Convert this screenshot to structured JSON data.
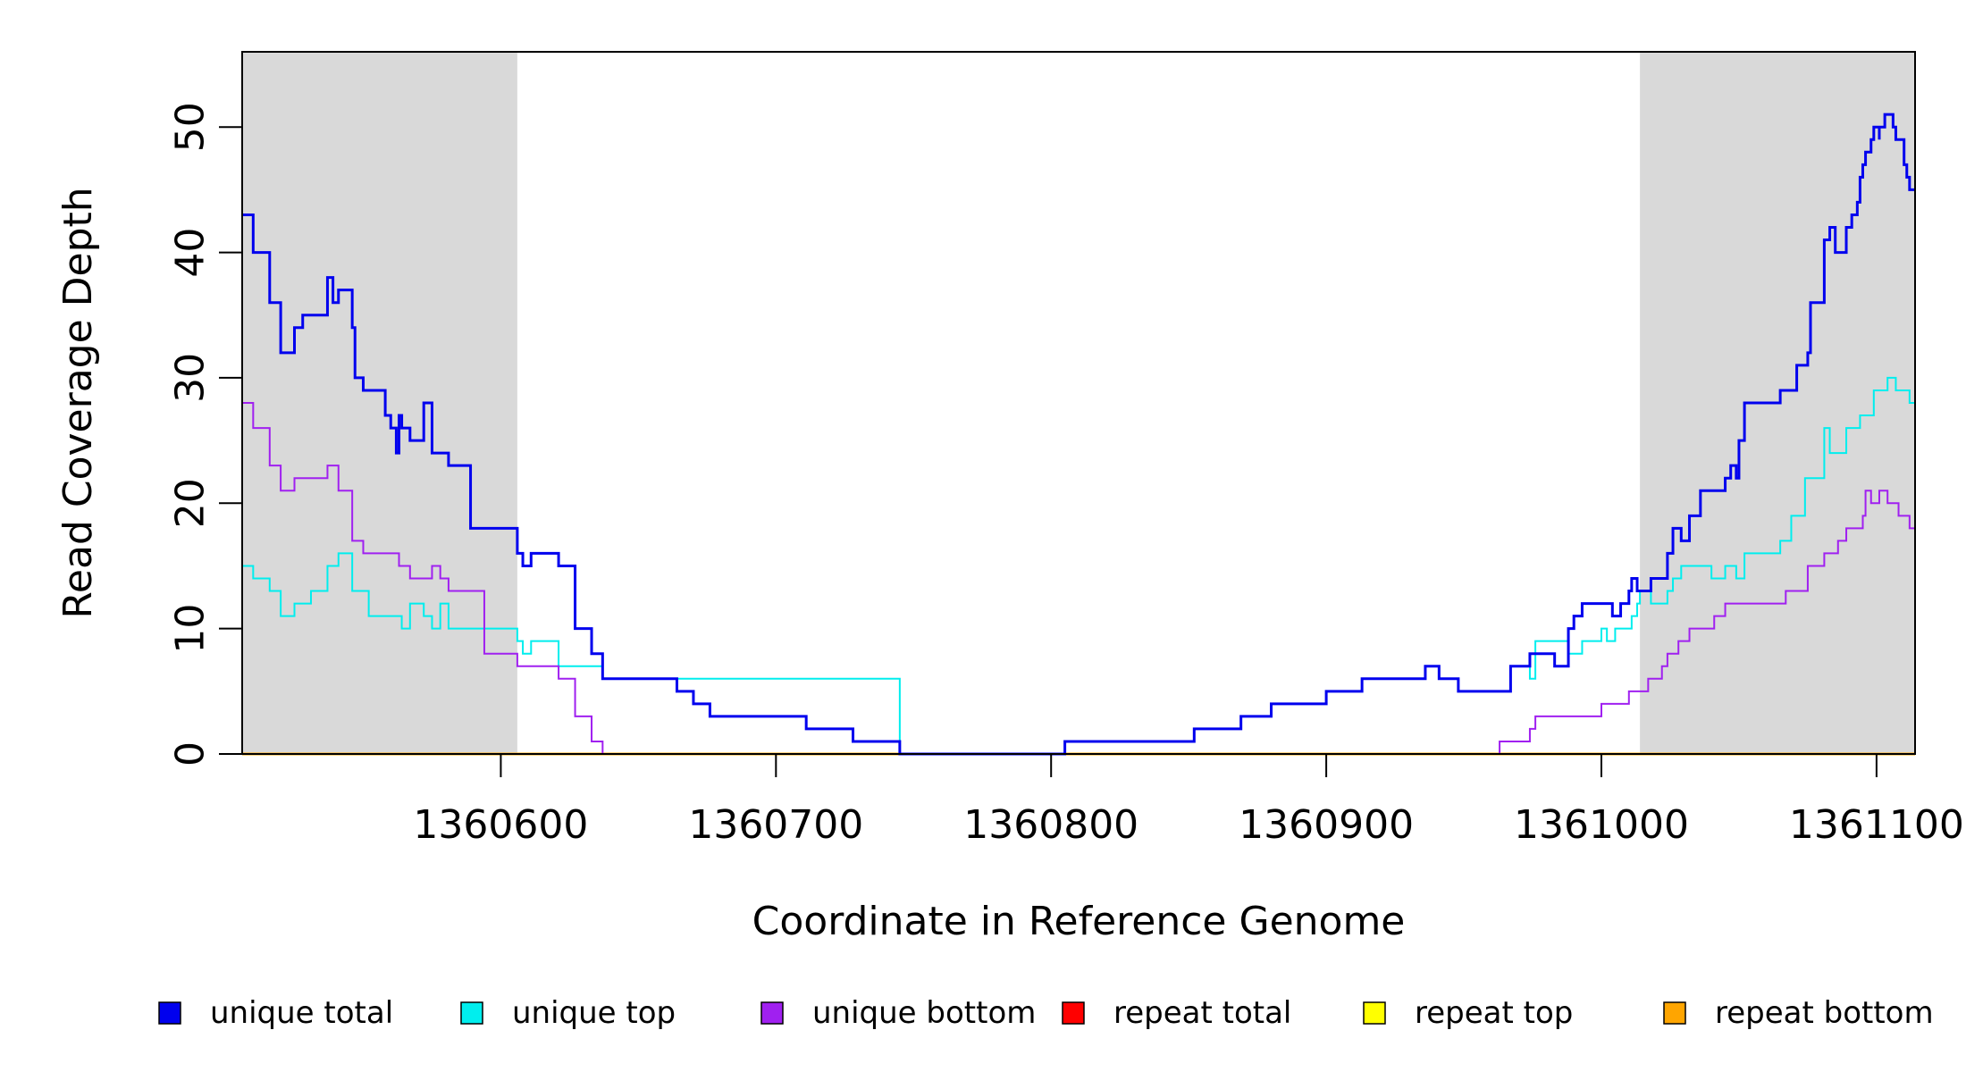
{
  "chart_data": {
    "type": "line",
    "style": "step",
    "xlabel": "Coordinate in Reference Genome",
    "ylabel": "Read Coverage Depth",
    "xlim": [
      1360506,
      1361114
    ],
    "ylim": [
      0,
      56
    ],
    "x_ticks": [
      1360600,
      1360700,
      1360800,
      1360900,
      1361000,
      1361100
    ],
    "x_tick_labels": [
      "1360600",
      "1360700",
      "1360800",
      "1360900",
      "1361000",
      "1361100"
    ],
    "y_ticks": [
      0,
      10,
      20,
      30,
      40,
      50
    ],
    "y_tick_labels": [
      "0",
      "10",
      "20",
      "30",
      "40",
      "50"
    ],
    "shaded_regions": [
      {
        "x_start": 1360506,
        "x_end": 1360606,
        "color": "#d9d9d9"
      },
      {
        "x_start": 1361014,
        "x_end": 1361114,
        "color": "#d9d9d9"
      }
    ],
    "legend_position": "bottom",
    "series": [
      {
        "name": "unique total",
        "color": "#0000ee",
        "x": [
          1360506,
          1360510,
          1360516,
          1360520,
          1360525,
          1360528,
          1360531,
          1360537,
          1360539,
          1360541,
          1360545,
          1360546,
          1360546,
          1360547,
          1360550,
          1360558,
          1360560,
          1360562,
          1360563,
          1360564,
          1360565,
          1360567,
          1360572,
          1360575,
          1360578,
          1360581,
          1360589,
          1360594,
          1360606,
          1360608,
          1360611,
          1360621,
          1360627,
          1360633,
          1360637,
          1360640,
          1360664,
          1360670,
          1360676,
          1360711,
          1360728,
          1360745,
          1360798,
          1360805,
          1360852,
          1360869,
          1360880,
          1360900,
          1360913,
          1360936,
          1360941,
          1360948,
          1360967,
          1360973,
          1360974,
          1360976,
          1360983,
          1360988,
          1360990,
          1360993,
          1361002,
          1361004,
          1361005,
          1361007,
          1361010,
          1361011,
          1361013,
          1361018,
          1361024,
          1361026,
          1361029,
          1361032,
          1361036,
          1361045,
          1361047,
          1361049,
          1361050,
          1361051,
          1361052,
          1361052,
          1361065,
          1361066,
          1361071,
          1361075,
          1361076,
          1361081,
          1361083,
          1361085,
          1361089,
          1361091,
          1361093,
          1361094,
          1361095,
          1361096,
          1361098,
          1361099,
          1361101,
          1361101,
          1361103,
          1361106,
          1361107,
          1361109,
          1361110,
          1361111,
          1361112,
          1361114
        ],
        "y": [
          43,
          40,
          36,
          32,
          34,
          35,
          35,
          38,
          36,
          37,
          37,
          37,
          34,
          30,
          29,
          27,
          26,
          24,
          27,
          26,
          26,
          25,
          28,
          24,
          24,
          23,
          18,
          18,
          16,
          15,
          16,
          15,
          10,
          8,
          6,
          6,
          5,
          4,
          3,
          2,
          1,
          0,
          0,
          1,
          2,
          3,
          4,
          5,
          6,
          7,
          6,
          5,
          7,
          7,
          8,
          8,
          7,
          10,
          11,
          12,
          12,
          11,
          11,
          12,
          13,
          14,
          13,
          14,
          16,
          18,
          17,
          19,
          21,
          22,
          23,
          22,
          25,
          25,
          26,
          28,
          29,
          29,
          31,
          32,
          36,
          41,
          42,
          40,
          42,
          43,
          44,
          46,
          47,
          48,
          49,
          50,
          49,
          50,
          51,
          50,
          49,
          49,
          47,
          46,
          45,
          45
        ]
      },
      {
        "name": "unique top",
        "color": "#00eeee",
        "x": [
          1360506,
          1360510,
          1360516,
          1360520,
          1360525,
          1360531,
          1360537,
          1360541,
          1360546,
          1360552,
          1360558,
          1360563,
          1360564,
          1360567,
          1360572,
          1360575,
          1360578,
          1360581,
          1360606,
          1360608,
          1360611,
          1360621,
          1360627,
          1360637,
          1360745,
          1360798,
          1360805,
          1360852,
          1360869,
          1360880,
          1360900,
          1360913,
          1360936,
          1360941,
          1360948,
          1360967,
          1360973,
          1360974,
          1360976,
          1360988,
          1360993,
          1361000,
          1361002,
          1361005,
          1361007,
          1361011,
          1361013,
          1361014,
          1361018,
          1361024,
          1361026,
          1361029,
          1361036,
          1361040,
          1361045,
          1361049,
          1361052,
          1361065,
          1361069,
          1361074,
          1361081,
          1361083,
          1361089,
          1361094,
          1361099,
          1361104,
          1361107,
          1361110,
          1361112,
          1361114
        ],
        "y": [
          15,
          14,
          13,
          11,
          12,
          13,
          15,
          16,
          13,
          11,
          11,
          11,
          10,
          12,
          11,
          10,
          12,
          10,
          9,
          8,
          9,
          7,
          7,
          6,
          0,
          0,
          1,
          2,
          3,
          4,
          5,
          6,
          7,
          6,
          5,
          7,
          7,
          6,
          9,
          8,
          9,
          10,
          9,
          10,
          10,
          11,
          12,
          13,
          12,
          13,
          14,
          15,
          15,
          14,
          15,
          14,
          16,
          17,
          19,
          22,
          26,
          24,
          26,
          27,
          29,
          30,
          29,
          29,
          28,
          27
        ]
      },
      {
        "name": "unique bottom",
        "color": "#a020f0",
        "x": [
          1360506,
          1360510,
          1360516,
          1360520,
          1360525,
          1360531,
          1360537,
          1360541,
          1360546,
          1360550,
          1360552,
          1360558,
          1360563,
          1360564,
          1360567,
          1360572,
          1360575,
          1360578,
          1360581,
          1360594,
          1360600,
          1360606,
          1360621,
          1360627,
          1360633,
          1360637,
          1360640,
          1360745,
          1360798,
          1360805,
          1360960,
          1360963,
          1360970,
          1360974,
          1360976,
          1361000,
          1361010,
          1361017,
          1361022,
          1361024,
          1361028,
          1361032,
          1361036,
          1361041,
          1361045,
          1361049,
          1361052,
          1361067,
          1361069,
          1361075,
          1361081,
          1361083,
          1361086,
          1361089,
          1361095,
          1361096,
          1361098,
          1361100,
          1361101,
          1361104,
          1361106,
          1361108,
          1361110,
          1361112,
          1361114
        ],
        "y": [
          28,
          26,
          23,
          21,
          22,
          22,
          23,
          21,
          17,
          16,
          16,
          16,
          15,
          15,
          14,
          14,
          15,
          14,
          13,
          8,
          8,
          7,
          6,
          3,
          1,
          0,
          0,
          0,
          0,
          0,
          0,
          1,
          1,
          2,
          3,
          4,
          5,
          6,
          7,
          8,
          9,
          10,
          10,
          11,
          12,
          12,
          12,
          13,
          13,
          15,
          16,
          16,
          17,
          18,
          19,
          21,
          20,
          20,
          21,
          20,
          20,
          19,
          19,
          18,
          18
        ]
      },
      {
        "name": "repeat total",
        "color": "#ff0000",
        "x": [
          1360506,
          1361114
        ],
        "y": [
          0,
          0
        ]
      },
      {
        "name": "repeat top",
        "color": "#ffff00",
        "x": [
          1360506,
          1361114
        ],
        "y": [
          0,
          0
        ]
      },
      {
        "name": "repeat bottom",
        "color": "#ffa500",
        "x": [
          1360506,
          1361114
        ],
        "y": [
          0,
          0
        ]
      }
    ]
  }
}
